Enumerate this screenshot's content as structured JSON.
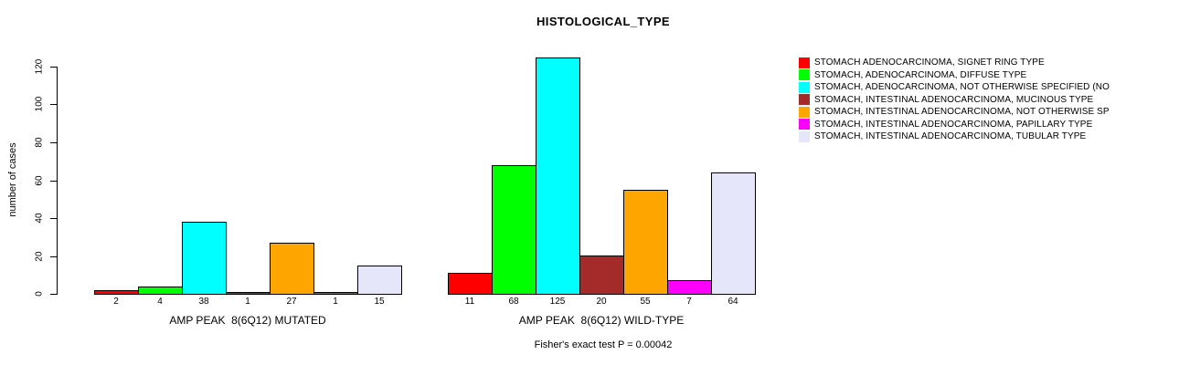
{
  "title": "HISTOLOGICAL_TYPE",
  "chart_data": {
    "type": "bar",
    "title": "HISTOLOGICAL_TYPE",
    "xlabel": "",
    "ylabel": "number of cases",
    "ylim": [
      0,
      120
    ],
    "yticks": [
      0,
      20,
      40,
      60,
      80,
      100,
      120
    ],
    "grid": false,
    "legend_position": "top-right",
    "categories": [
      "STOMACH ADENOCARCINOMA, SIGNET RING TYPE",
      "STOMACH, ADENOCARCINOMA, DIFFUSE TYPE",
      "STOMACH, ADENOCARCINOMA, NOT OTHERWISE SPECIFIED (NO",
      "STOMACH, INTESTINAL ADENOCARCINOMA, MUCINOUS TYPE",
      "STOMACH, INTESTINAL ADENOCARCINOMA, NOT OTHERWISE SP",
      "STOMACH, INTESTINAL ADENOCARCINOMA, PAPILLARY TYPE",
      "STOMACH, INTESTINAL ADENOCARCINOMA, TUBULAR TYPE"
    ],
    "series_colors": [
      "#ff0000",
      "#00ff00",
      "#00ffff",
      "#a52a2a",
      "#ffa500",
      "#ff00ff",
      "#e6e6fa"
    ],
    "groups": [
      {
        "label": "AMP PEAK  8(6Q12) MUTATED",
        "values": [
          2,
          4,
          38,
          1,
          27,
          1,
          15
        ]
      },
      {
        "label": "AMP PEAK  8(6Q12) WILD-TYPE",
        "values": [
          11,
          68,
          125,
          20,
          55,
          7,
          64
        ]
      }
    ],
    "annotation": "Fisher's exact test P = 0.00042"
  },
  "colors": {
    "axis": "#000000",
    "background": "#ffffff",
    "bar_border": "#000000"
  }
}
